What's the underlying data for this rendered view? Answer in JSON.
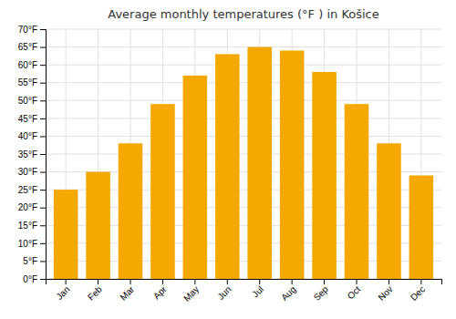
{
  "chart_data": {
    "type": "bar",
    "title": "Average monthly temperatures (°F ) in Košice",
    "categories": [
      "Jan",
      "Feb",
      "Mar",
      "Apr",
      "May",
      "Jun",
      "Jul",
      "Aug",
      "Sep",
      "Oct",
      "Nov",
      "Dec"
    ],
    "values": [
      25,
      30,
      38,
      49,
      57,
      63,
      65,
      64,
      58,
      49,
      38,
      29
    ],
    "color": "#F5A800",
    "ylim": [
      0,
      70
    ],
    "yticks": [
      {
        "value": 0,
        "label": "0°F"
      },
      {
        "value": 5,
        "label": "5°F"
      },
      {
        "value": 10,
        "label": "10°F"
      },
      {
        "value": 15,
        "label": "15°F"
      },
      {
        "value": 20,
        "label": "20°F"
      },
      {
        "value": 25,
        "label": "25°F"
      },
      {
        "value": 30,
        "label": "30°F"
      },
      {
        "value": 35,
        "label": "35°F"
      },
      {
        "value": 40,
        "label": "40°F"
      },
      {
        "value": 45,
        "label": "45°F"
      },
      {
        "value": 50,
        "label": "50°F"
      },
      {
        "value": 55,
        "label": "55°F"
      },
      {
        "value": 60,
        "label": "60°F"
      },
      {
        "value": 65,
        "label": "65°F"
      },
      {
        "value": 70,
        "label": "70°F"
      }
    ],
    "grid": true
  }
}
